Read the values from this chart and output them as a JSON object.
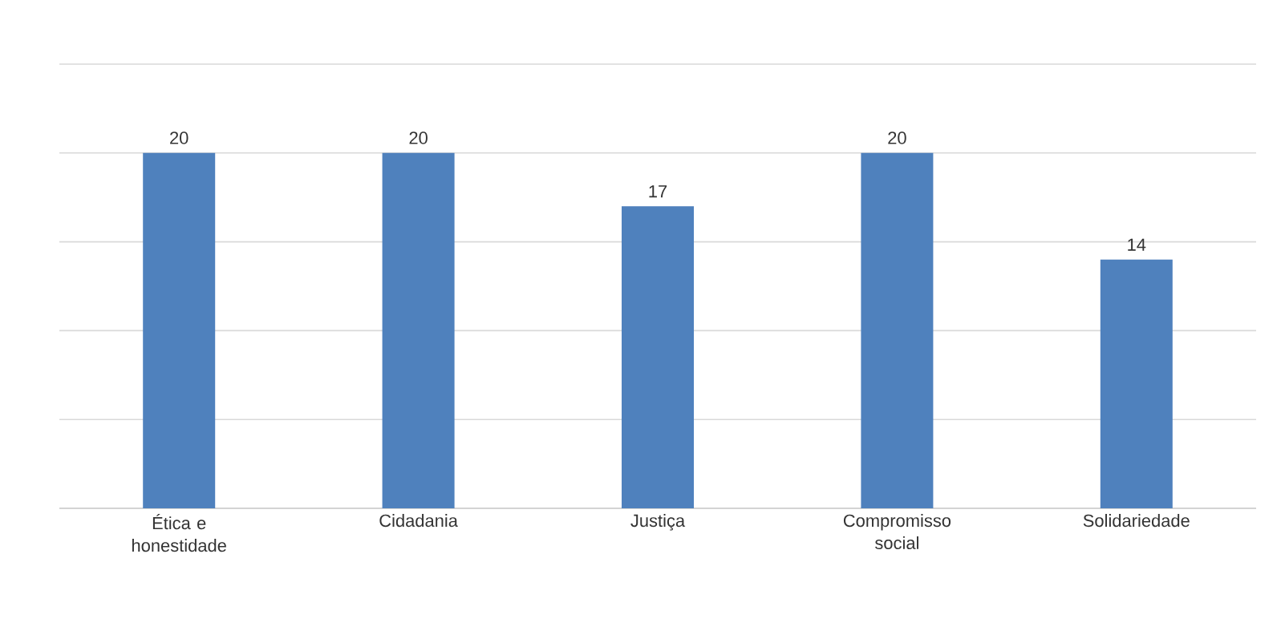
{
  "chart_data": {
    "type": "bar",
    "categories": [
      "Ética e honestidade",
      "Cidadania",
      "Justiça",
      "Compromisso social",
      "Solidariedade"
    ],
    "values": [
      20,
      20,
      17,
      20,
      14
    ],
    "color": "#4f81bd",
    "data_labels": true,
    "grid": "y",
    "tick_labels": "x",
    "ylim": [
      0,
      25
    ],
    "yticks": [
      {
        "value": 0,
        "label": null
      },
      {
        "value": 5,
        "label": null
      },
      {
        "value": 10,
        "label": null
      },
      {
        "value": 15,
        "label": null
      },
      {
        "value": 20,
        "label": null
      },
      {
        "value": 25,
        "label": null
      }
    ]
  }
}
